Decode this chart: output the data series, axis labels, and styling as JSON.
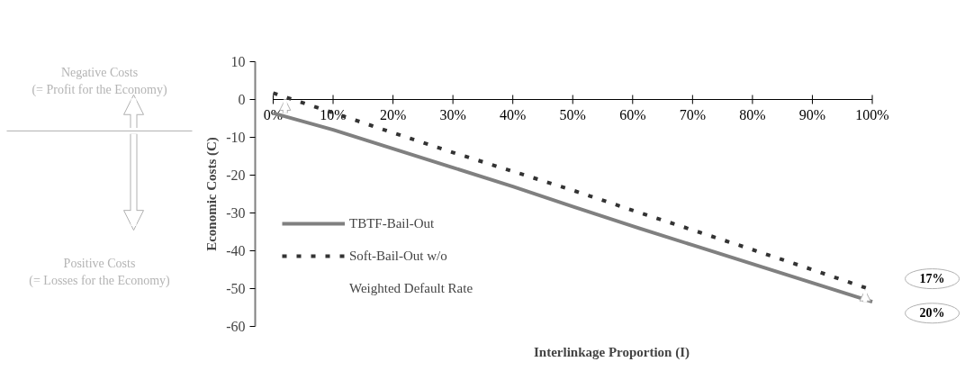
{
  "chart_data": {
    "type": "line",
    "xlabel": "Interlinkage Proportion (I)",
    "ylabel": "Economic Costs (C)",
    "x": [
      0,
      10,
      20,
      30,
      40,
      50,
      60,
      70,
      80,
      90,
      100
    ],
    "series": [
      {
        "name": "TBTF-Bail-Out",
        "color": "#808080",
        "line_style": "solid",
        "values": [
          -3.6,
          -8,
          -13,
          -18,
          -23,
          -28.3,
          -33.5,
          -38.5,
          -43.5,
          -48.5,
          -53.5
        ]
      },
      {
        "name": "Soft-Bail-Out w/o",
        "color": "#333333",
        "line_style": "dashed",
        "values": [
          1.7,
          -3.5,
          -8.8,
          -14,
          -19,
          -24,
          -29.3,
          -34.5,
          -39.7,
          -45,
          -50.4
        ]
      }
    ],
    "xlim": [
      0,
      100
    ],
    "xticks": [
      {
        "value": 0,
        "label": "0%"
      },
      {
        "value": 10,
        "label": "10%"
      },
      {
        "value": 20,
        "label": "20%"
      },
      {
        "value": 30,
        "label": "30%"
      },
      {
        "value": 40,
        "label": "40%"
      },
      {
        "value": 50,
        "label": "50%"
      },
      {
        "value": 60,
        "label": "60%"
      },
      {
        "value": 70,
        "label": "70%"
      },
      {
        "value": 80,
        "label": "80%"
      },
      {
        "value": 90,
        "label": "90%"
      },
      {
        "value": 100,
        "label": "100%"
      }
    ],
    "ylim": [
      -60,
      10
    ],
    "yticks": [
      -60,
      -50,
      -40,
      -30,
      -20,
      -10,
      0,
      10
    ],
    "grid": false,
    "legend": "bottom left",
    "marker": "none",
    "annotations": [
      "Negative Costs\n(= Profit for the Economy)",
      "Positive Costs\n(= Losses for the Economy)",
      "Weighted Default Rate",
      "17%",
      "20%"
    ]
  }
}
